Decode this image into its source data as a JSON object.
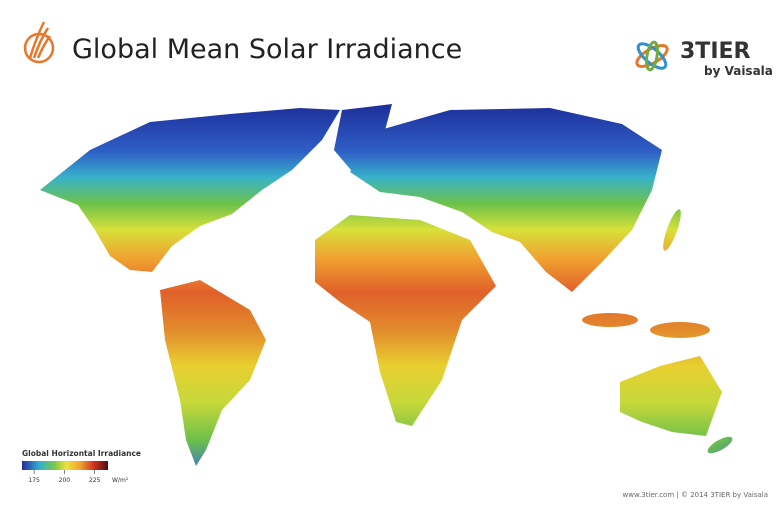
{
  "header": {
    "title": "Global Mean Solar Irradiance",
    "logo_name": "3TIER",
    "logo_sub": "by Vaisala"
  },
  "legend": {
    "title": "Global Horizontal Irradiance",
    "range": [
      165,
      236
    ],
    "ticks": [
      175,
      200,
      225
    ],
    "unit": "W/m²"
  },
  "footer": "www.3tier.com  |  © 2014 3TIER by Vaisala"
}
